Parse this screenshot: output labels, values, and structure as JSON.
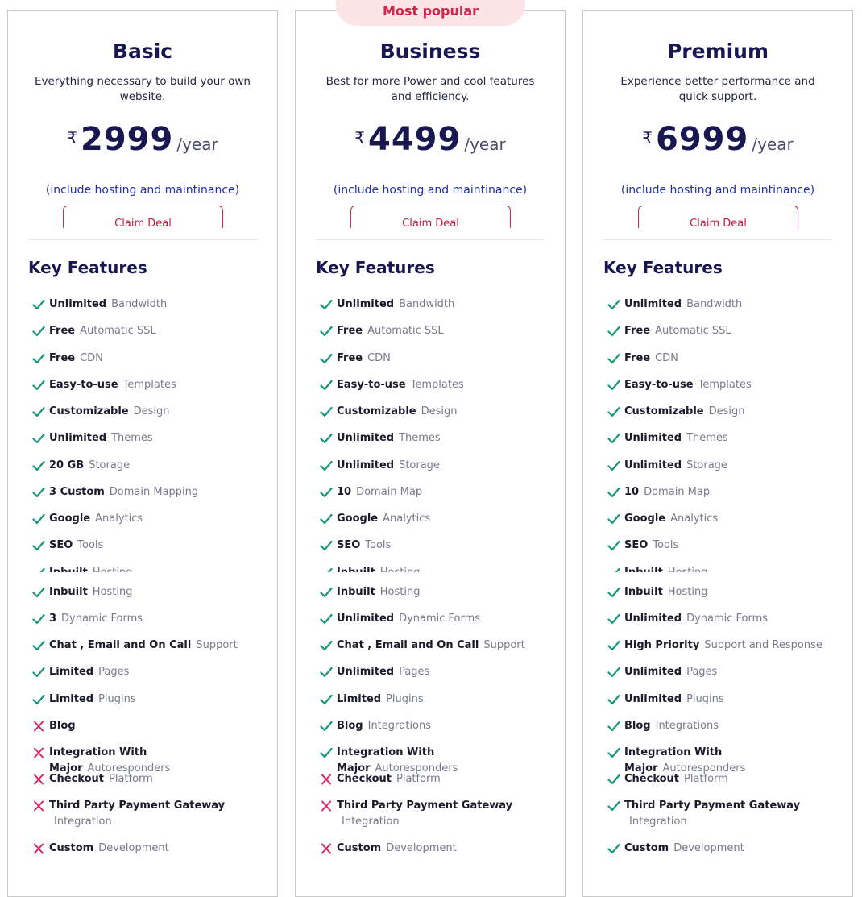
{
  "badge": "Most popular",
  "key_features_title": "Key Features",
  "claim_label": "Claim Deal",
  "hosting_note": "(include hosting and maintinance)",
  "per_label": "/year",
  "currency": "₹",
  "colors": {
    "check": "#16967a",
    "cross": "#e0245e",
    "accent": "#d4254a",
    "heading": "#18174f"
  },
  "plans": [
    {
      "name": "Basic",
      "desc": "Everything necessary to build your own website.",
      "price": "2999",
      "features": [
        {
          "s": "Unlimited",
          "l": "Bandwidth",
          "ok": true
        },
        {
          "s": "Free",
          "l": "Automatic SSL",
          "ok": true
        },
        {
          "s": "Free",
          "l": "CDN",
          "ok": true
        },
        {
          "s": "Easy-to-use",
          "l": "Templates",
          "ok": true
        },
        {
          "s": "Customizable",
          "l": "Design",
          "ok": true
        },
        {
          "s": "Unlimited",
          "l": "Themes",
          "ok": true
        },
        {
          "s": "20 GB",
          "l": "Storage",
          "ok": true
        },
        {
          "s": "3 Custom",
          "l": "Domain Mapping",
          "ok": true
        },
        {
          "s": "Google",
          "l": "Analytics",
          "ok": true
        },
        {
          "s": "SEO",
          "l": "Tools",
          "ok": true
        },
        {
          "s": "Inbuilt",
          "l": "Hosting",
          "ok": true
        },
        {
          "s": "Inbuilt",
          "l": "Hosting",
          "ok": true
        },
        {
          "s": "3",
          "l": "Dynamic Forms",
          "ok": true
        },
        {
          "s": "Chat , Email and On Call",
          "l": "Support",
          "ok": true
        },
        {
          "s": "Limited",
          "l": "Pages",
          "ok": true
        },
        {
          "s": "Limited",
          "l": "Plugins",
          "ok": true
        },
        {
          "s": "Blog",
          "l": "",
          "ok": false
        },
        {
          "s": "Integration With Major",
          "l": "Autoresponders",
          "ok": false
        },
        {
          "s": "Checkout",
          "l": "Platform",
          "ok": false
        },
        {
          "s": "Third Party Payment Gateway",
          "l": "Integration",
          "ok": false
        },
        {
          "s": "Custom",
          "l": "Development",
          "ok": false
        }
      ]
    },
    {
      "name": "Business",
      "desc": "Best for more Power and cool features and efficiency.",
      "price": "4499",
      "features": [
        {
          "s": "Unlimited",
          "l": "Bandwidth",
          "ok": true
        },
        {
          "s": "Free",
          "l": "Automatic SSL",
          "ok": true
        },
        {
          "s": "Free",
          "l": "CDN",
          "ok": true
        },
        {
          "s": "Easy-to-use",
          "l": "Templates",
          "ok": true
        },
        {
          "s": "Customizable",
          "l": "Design",
          "ok": true
        },
        {
          "s": "Unlimited",
          "l": "Themes",
          "ok": true
        },
        {
          "s": "Unlimited",
          "l": "Storage",
          "ok": true
        },
        {
          "s": "10",
          "l": "Domain Map",
          "ok": true
        },
        {
          "s": "Google",
          "l": "Analytics",
          "ok": true
        },
        {
          "s": "SEO",
          "l": "Tools",
          "ok": true
        },
        {
          "s": "Inbuilt",
          "l": "Hosting",
          "ok": true
        },
        {
          "s": "Inbuilt",
          "l": "Hosting",
          "ok": true
        },
        {
          "s": "Unlimited",
          "l": "Dynamic Forms",
          "ok": true
        },
        {
          "s": "Chat , Email and On Call",
          "l": "Support",
          "ok": true
        },
        {
          "s": "Unlimited",
          "l": "Pages",
          "ok": true
        },
        {
          "s": "Limited",
          "l": "Plugins",
          "ok": true
        },
        {
          "s": "Blog",
          "l": "Integrations",
          "ok": true
        },
        {
          "s": "Integration With Major",
          "l": "Autoresponders",
          "ok": true
        },
        {
          "s": "Checkout",
          "l": "Platform",
          "ok": false
        },
        {
          "s": "Third Party Payment Gateway",
          "l": "Integration",
          "ok": false
        },
        {
          "s": "Custom",
          "l": "Development",
          "ok": false
        }
      ]
    },
    {
      "name": "Premium",
      "desc": "Experience better performance and quick support.",
      "price": "6999",
      "features": [
        {
          "s": "Unlimited",
          "l": "Bandwidth",
          "ok": true
        },
        {
          "s": "Free",
          "l": "Automatic SSL",
          "ok": true
        },
        {
          "s": "Free",
          "l": "CDN",
          "ok": true
        },
        {
          "s": "Easy-to-use",
          "l": "Templates",
          "ok": true
        },
        {
          "s": "Customizable",
          "l": "Design",
          "ok": true
        },
        {
          "s": "Unlimited",
          "l": "Themes",
          "ok": true
        },
        {
          "s": "Unlimited",
          "l": "Storage",
          "ok": true
        },
        {
          "s": "10",
          "l": "Domain Map",
          "ok": true
        },
        {
          "s": "Google",
          "l": "Analytics",
          "ok": true
        },
        {
          "s": "SEO",
          "l": "Tools",
          "ok": true
        },
        {
          "s": "Inbuilt",
          "l": "Hosting",
          "ok": true
        },
        {
          "s": "Inbuilt",
          "l": "Hosting",
          "ok": true
        },
        {
          "s": "Unlimited",
          "l": "Dynamic Forms",
          "ok": true
        },
        {
          "s": "High Priority",
          "l": "Support and Response",
          "ok": true
        },
        {
          "s": "Unlimited",
          "l": "Pages",
          "ok": true
        },
        {
          "s": "Unlimited",
          "l": "Plugins",
          "ok": true
        },
        {
          "s": "Blog",
          "l": "Integrations",
          "ok": true
        },
        {
          "s": "Integration With Major",
          "l": "Autoresponders",
          "ok": true
        },
        {
          "s": "Checkout",
          "l": "Platform",
          "ok": true
        },
        {
          "s": "Third Party Payment Gateway",
          "l": "Integration",
          "ok": true
        },
        {
          "s": "Custom",
          "l": "Development",
          "ok": true
        }
      ]
    }
  ]
}
